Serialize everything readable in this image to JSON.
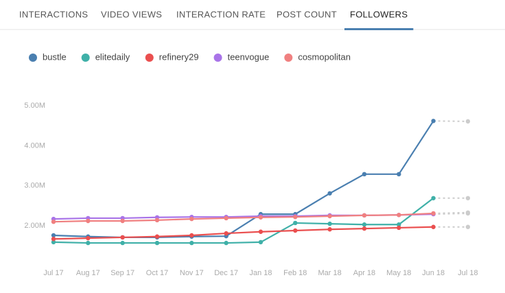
{
  "tabs": [
    "INTERACTIONS",
    "VIDEO VIEWS",
    "INTERACTION RATE",
    "POST COUNT",
    "FOLLOWERS"
  ],
  "active_tab": 4,
  "chart_data": {
    "type": "line",
    "categories": [
      "Jul 17",
      "Aug 17",
      "Sep 17",
      "Oct 17",
      "Nov 17",
      "Dec 17",
      "Jan 18",
      "Feb 18",
      "Mar 18",
      "Apr 18",
      "May 18",
      "Jun 18",
      "Jul 18"
    ],
    "projected_last": true,
    "projection_color": "#cccccc",
    "ylim": [
      1000000,
      5500000
    ],
    "yticks": [
      {
        "value": 2000000,
        "label": "2.00M"
      },
      {
        "value": 3000000,
        "label": "3.00M"
      },
      {
        "value": 4000000,
        "label": "4.00M"
      },
      {
        "value": 5000000,
        "label": "5.00M"
      }
    ],
    "series": [
      {
        "name": "bustle",
        "color": "#4a7fb0",
        "values": [
          1760000,
          1730000,
          1710000,
          1710000,
          1730000,
          1740000,
          2290000,
          2290000,
          2810000,
          3290000,
          3290000,
          4620000,
          4610000
        ]
      },
      {
        "name": "elitedaily",
        "color": "#3fb0a8",
        "values": [
          1590000,
          1570000,
          1570000,
          1570000,
          1570000,
          1570000,
          1590000,
          2070000,
          2050000,
          2030000,
          2030000,
          2690000,
          2690000
        ]
      },
      {
        "name": "refinery29",
        "color": "#ea4f4f",
        "values": [
          1670000,
          1690000,
          1710000,
          1730000,
          1760000,
          1810000,
          1850000,
          1880000,
          1910000,
          1930000,
          1950000,
          1970000,
          1970000
        ]
      },
      {
        "name": "teenvogue",
        "color": "#a974e8",
        "values": [
          2170000,
          2190000,
          2190000,
          2210000,
          2220000,
          2220000,
          2240000,
          2240000,
          2260000,
          2260000,
          2270000,
          2290000,
          2310000
        ]
      },
      {
        "name": "cosmopolitan",
        "color": "#f08080",
        "values": [
          2100000,
          2120000,
          2120000,
          2140000,
          2170000,
          2190000,
          2210000,
          2220000,
          2240000,
          2260000,
          2270000,
          2310000,
          2330000
        ]
      }
    ]
  }
}
